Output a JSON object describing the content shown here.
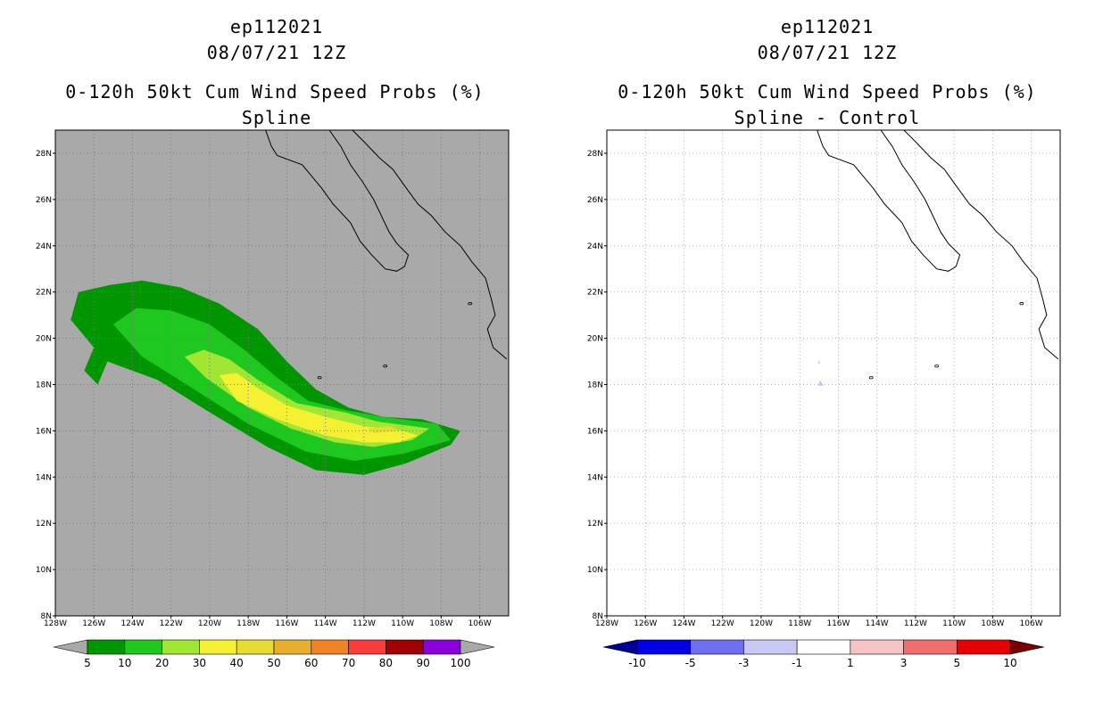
{
  "chart_data": [
    {
      "type": "heatmap",
      "title_lines": [
        "ep112021",
        "08/07/21 12Z",
        "0-120h 50kt Cum Wind Speed Probs (%)",
        "Spline"
      ],
      "x_ticks": [
        "128W",
        "126W",
        "124W",
        "122W",
        "120W",
        "118W",
        "116W",
        "114W",
        "112W",
        "110W",
        "108W",
        "106W"
      ],
      "y_ticks": [
        "8N",
        "10N",
        "12N",
        "14N",
        "16N",
        "18N",
        "20N",
        "22N",
        "24N",
        "26N",
        "28N"
      ],
      "xlim_deg_west": [
        128,
        104.5
      ],
      "ylim_deg_north": [
        8,
        29
      ],
      "grid": true,
      "background_color": "#a9a9a9",
      "colorbar": {
        "labels": [
          "5",
          "10",
          "20",
          "30",
          "40",
          "50",
          "60",
          "70",
          "80",
          "90",
          "100"
        ],
        "colors": [
          "#009600",
          "#1ec81e",
          "#a0e632",
          "#f5f032",
          "#e6dc32",
          "#e6af2d",
          "#f08228",
          "#fa3c3c",
          "#a00000",
          "#8c00dc"
        ],
        "end_color": "#a9a9a9"
      },
      "contours": [
        {
          "level": "5-10",
          "color": "#009600",
          "points": [
            [
              -126.8,
              22.0
            ],
            [
              -125.2,
              22.3
            ],
            [
              -123.5,
              22.5
            ],
            [
              -121.5,
              22.2
            ],
            [
              -119.5,
              21.5
            ],
            [
              -117.5,
              20.4
            ],
            [
              -116.0,
              19.0
            ],
            [
              -114.5,
              17.8
            ],
            [
              -112.8,
              17.0
            ],
            [
              -111.0,
              16.6
            ],
            [
              -109.0,
              16.5
            ],
            [
              -107.0,
              16.0
            ],
            [
              -107.5,
              15.4
            ],
            [
              -109.8,
              14.6
            ],
            [
              -112.0,
              14.1
            ],
            [
              -114.5,
              14.3
            ],
            [
              -117.0,
              15.3
            ],
            [
              -120.0,
              16.8
            ],
            [
              -122.7,
              18.2
            ],
            [
              -125.3,
              19.0
            ],
            [
              -125.8,
              18.0
            ],
            [
              -126.5,
              18.6
            ],
            [
              -126.0,
              19.6
            ],
            [
              -127.2,
              20.8
            ]
          ]
        },
        {
          "level": "10-20",
          "color": "#1ec81e",
          "points": [
            [
              -125.0,
              20.6
            ],
            [
              -123.8,
              21.3
            ],
            [
              -122.0,
              21.2
            ],
            [
              -120.0,
              20.6
            ],
            [
              -118.2,
              19.5
            ],
            [
              -116.5,
              18.3
            ],
            [
              -114.9,
              17.3
            ],
            [
              -113.0,
              16.9
            ],
            [
              -111.0,
              16.6
            ],
            [
              -108.2,
              16.3
            ],
            [
              -107.5,
              15.6
            ],
            [
              -110.0,
              15.0
            ],
            [
              -112.5,
              14.7
            ],
            [
              -115.0,
              15.1
            ],
            [
              -118.0,
              16.3
            ],
            [
              -121.0,
              17.9
            ],
            [
              -123.5,
              19.2
            ]
          ]
        },
        {
          "level": "20-30",
          "color": "#a0e632",
          "points": [
            [
              -121.3,
              19.2
            ],
            [
              -120.3,
              19.5
            ],
            [
              -119.0,
              19.1
            ],
            [
              -117.5,
              18.2
            ],
            [
              -115.5,
              17.2
            ],
            [
              -113.0,
              16.8
            ],
            [
              -111.3,
              16.4
            ],
            [
              -108.6,
              16.1
            ],
            [
              -109.5,
              15.6
            ],
            [
              -111.5,
              15.3
            ],
            [
              -113.5,
              15.5
            ],
            [
              -115.8,
              16.1
            ],
            [
              -118.0,
              17.0
            ],
            [
              -120.2,
              18.3
            ]
          ]
        },
        {
          "level": "30-40",
          "color": "#f5f032",
          "points": [
            [
              -119.5,
              18.4
            ],
            [
              -118.6,
              18.5
            ],
            [
              -117.6,
              17.9
            ],
            [
              -116.0,
              17.1
            ],
            [
              -114.0,
              16.6
            ],
            [
              -112.0,
              16.2
            ],
            [
              -110.0,
              16.0
            ],
            [
              -109.2,
              15.8
            ],
            [
              -110.2,
              15.5
            ],
            [
              -112.0,
              15.5
            ],
            [
              -114.0,
              15.8
            ],
            [
              -116.5,
              16.5
            ],
            [
              -118.6,
              17.3
            ]
          ]
        },
        {
          "level": "40-50",
          "color": "#e6dc32",
          "points": [
            [
              -111.8,
              16.1
            ],
            [
              -110.6,
              16.2
            ],
            [
              -110.2,
              16.0
            ],
            [
              -111.5,
              15.9
            ]
          ]
        }
      ]
    },
    {
      "type": "heatmap",
      "title_lines": [
        "ep112021",
        "08/07/21 12Z",
        "0-120h 50kt Cum Wind Speed Probs (%)",
        "Spline - Control"
      ],
      "x_ticks": [
        "128W",
        "126W",
        "124W",
        "122W",
        "120W",
        "118W",
        "116W",
        "114W",
        "112W",
        "110W",
        "108W",
        "106W"
      ],
      "y_ticks": [
        "8N",
        "10N",
        "12N",
        "14N",
        "16N",
        "18N",
        "20N",
        "22N",
        "24N",
        "26N",
        "28N"
      ],
      "xlim_deg_west": [
        128,
        104.5
      ],
      "ylim_deg_north": [
        8,
        29
      ],
      "grid": true,
      "background_color": "#ffffff",
      "colorbar": {
        "labels": [
          "-10",
          "-5",
          "-3",
          "-1",
          "1",
          "3",
          "5",
          "10"
        ],
        "colors": [
          "#0000e6",
          "#6e6ef0",
          "#c8c8f5",
          "#ffffff",
          "#f5c3c3",
          "#f06e6e",
          "#e60000"
        ],
        "low_end_color": "#000096",
        "high_end_color": "#780000"
      },
      "difference_blobs": [
        {
          "color": "#c8c8f5",
          "points": [
            [
              -116.95,
              18.2
            ],
            [
              -116.8,
              18.0
            ],
            [
              -116.75,
              17.95
            ],
            [
              -117.05,
              17.95
            ]
          ]
        },
        {
          "color": "#c8c8f5",
          "points": [
            [
              -117.0,
              19.1
            ],
            [
              -116.95,
              18.9
            ],
            [
              -117.05,
              18.9
            ]
          ]
        },
        {
          "color": "#f5c3c3",
          "points": [
            [
              -120.05,
              22.1
            ],
            [
              -120.0,
              22.0
            ],
            [
              -120.1,
              22.0
            ]
          ]
        }
      ]
    }
  ]
}
